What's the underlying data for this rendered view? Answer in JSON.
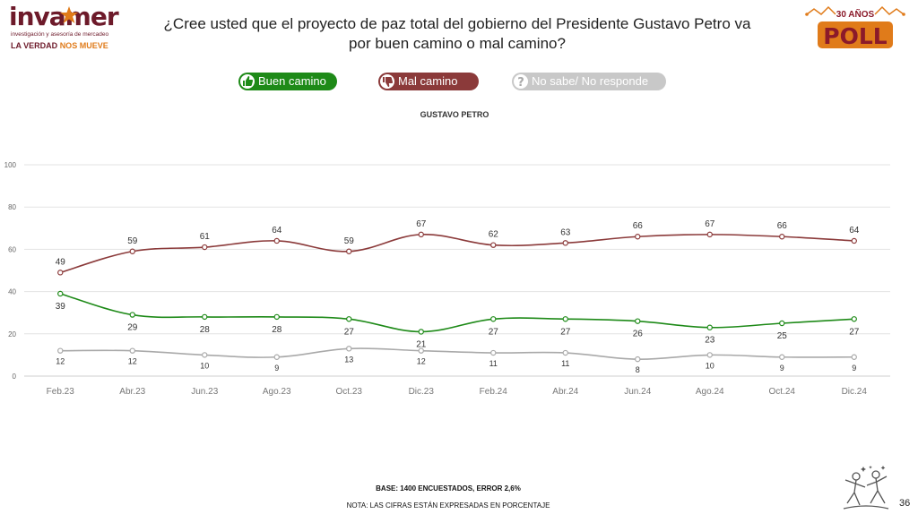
{
  "brand": {
    "name": "invamer",
    "tagline_small": "investigación y asesoría de mercadeo",
    "slogan_part1": "LA VERDAD",
    "slogan_part2": "NOS MUEVE",
    "badge_top": "30 AÑOS",
    "badge_main": "POLL"
  },
  "title": "¿Cree usted que el proyecto de paz total del gobierno del Presidente Gustavo Petro va por buen camino o mal camino?",
  "legend": {
    "good": "Buen camino",
    "bad": "Mal camino",
    "ns": "No sabe/ No responde"
  },
  "colors": {
    "good": "#1e8a18",
    "bad": "#8b3a3a",
    "ns": "#a9a9a9",
    "grid": "#e3e3e3"
  },
  "footer": {
    "base": "BASE: 1400 ENCUESTADOS, ERROR 2,6%",
    "note": "NOTA: LAS CIFRAS ESTÁN EXPRESADAS EN PORCENTAJE",
    "page": "36"
  },
  "chart_data": {
    "type": "line",
    "title": "GUSTAVO PETRO",
    "categories": [
      "Feb.23",
      "Abr.23",
      "Jun.23",
      "Ago.23",
      "Oct.23",
      "Dic.23",
      "Feb.24",
      "Abr.24",
      "Jun.24",
      "Ago.24",
      "Oct.24",
      "Dic.24"
    ],
    "series": [
      {
        "name": "Mal camino",
        "key": "bad",
        "values": [
          49,
          59,
          61,
          64,
          59,
          67,
          62,
          63,
          66,
          67,
          66,
          64
        ]
      },
      {
        "name": "Buen camino",
        "key": "good",
        "values": [
          39,
          29,
          28,
          28,
          27,
          21,
          27,
          27,
          26,
          23,
          25,
          27
        ]
      },
      {
        "name": "No sabe/ No responde",
        "key": "ns",
        "values": [
          12,
          12,
          10,
          9,
          13,
          12,
          11,
          11,
          8,
          10,
          9,
          9
        ]
      }
    ],
    "ylim": [
      0,
      100
    ],
    "yticks": [
      0,
      20,
      40,
      60,
      80,
      100
    ],
    "grid": true,
    "legend_position": "top"
  }
}
